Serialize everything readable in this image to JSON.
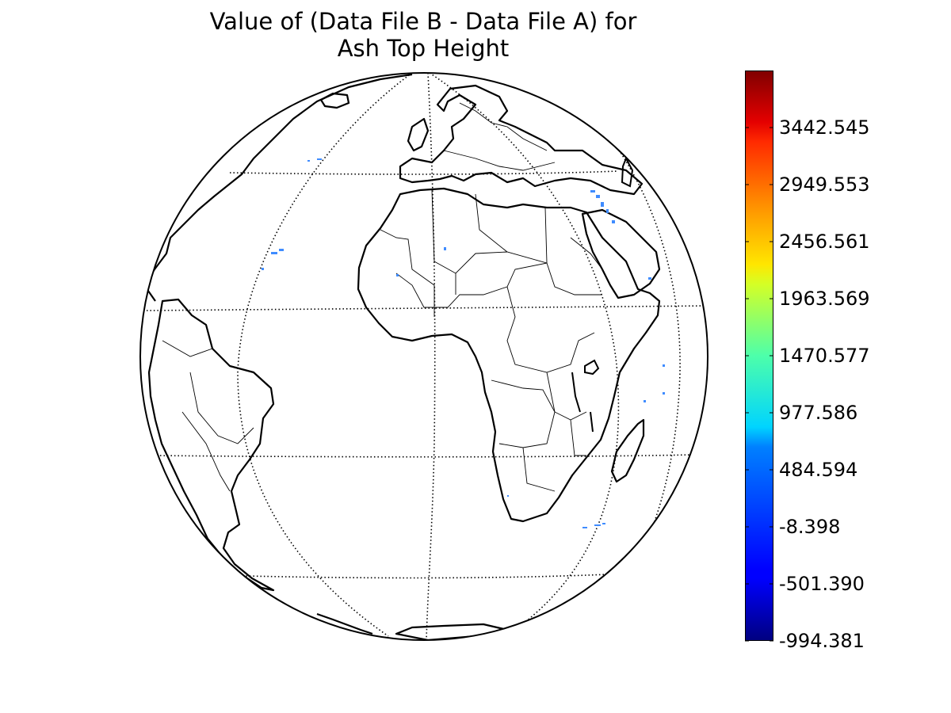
{
  "title": {
    "line1": "Value of (Data File B - Data File A) for",
    "line2": "Ash Top Height"
  },
  "projection": "orthographic",
  "graticule_style": "dotted",
  "colorbar": {
    "colormap": "jet",
    "min": -994.381,
    "max": 3935.537,
    "ticks": [
      {
        "value": 3442.545,
        "label": "3442.545"
      },
      {
        "value": 2949.553,
        "label": "2949.553"
      },
      {
        "value": 2456.561,
        "label": "2456.561"
      },
      {
        "value": 1963.569,
        "label": "1963.569"
      },
      {
        "value": 1470.577,
        "label": "1470.577"
      },
      {
        "value": 977.586,
        "label": "977.586"
      },
      {
        "value": 484.594,
        "label": "484.594"
      },
      {
        "value": -8.398,
        "label": "-8.398"
      },
      {
        "value": -501.39,
        "label": "-501.390"
      },
      {
        "value": -994.381,
        "label": "-994.381"
      }
    ]
  },
  "colors": {
    "data_points": "#3f8cff",
    "coastline": "#000000",
    "background": "#ffffff"
  }
}
